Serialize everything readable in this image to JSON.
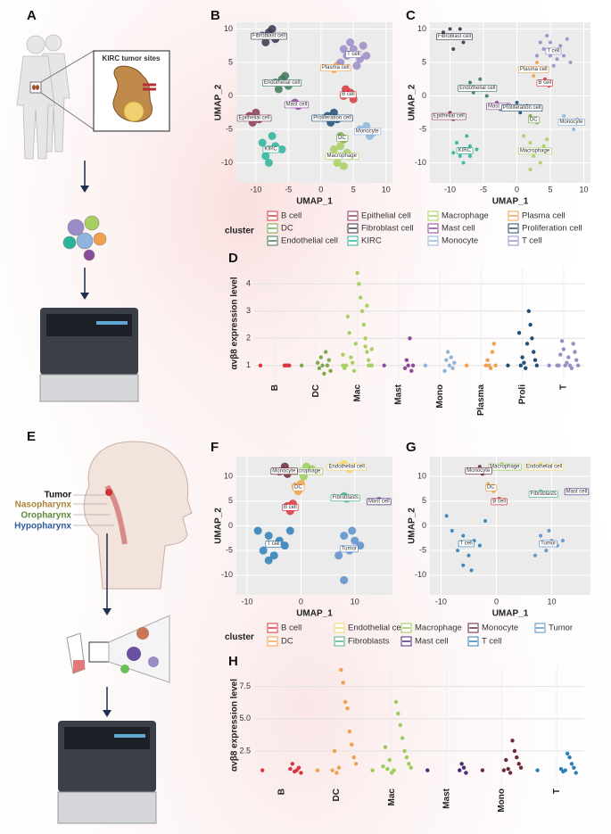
{
  "panel_labels": [
    "A",
    "B",
    "C",
    "D",
    "E",
    "F",
    "G",
    "H"
  ],
  "kidney": {
    "title": "KIRC tumor sites"
  },
  "head_neck": {
    "labels": [
      "Tumor",
      "Nasopharynx",
      "Oropharynx",
      "Hypopharynx"
    ]
  },
  "chart_data": [
    {
      "type": "umap",
      "x_label": "UMAP_1",
      "y_label": "UMAP_2",
      "legend_title": "cluster",
      "xlim": [
        -13,
        11
      ],
      "xticks": [
        -10,
        -5,
        0,
        5,
        10
      ],
      "ylim": [
        -13,
        11
      ],
      "yticks": [
        -10,
        -5,
        0,
        5,
        10
      ],
      "series": [
        {
          "name": "B cell",
          "color": "#d9363e",
          "x": [
            3.5,
            4.5,
            5,
            3.8
          ],
          "y": [
            0,
            0.5,
            -0.5,
            1
          ]
        },
        {
          "name": "DC",
          "color": "#7fa84a",
          "x": [
            3,
            3.5
          ],
          "y": [
            -6,
            -6.5
          ]
        },
        {
          "name": "Endothelial cell",
          "color": "#3c7a5a",
          "x": [
            -7,
            -6,
            -5,
            -6.5,
            -5.5
          ],
          "y": [
            2,
            2.5,
            1.5,
            1,
            3
          ]
        },
        {
          "name": "Epithelial cell",
          "color": "#8a3a5c",
          "x": [
            -11,
            -10,
            -9.5,
            -10.5
          ],
          "y": [
            -3,
            -2.5,
            -3.5,
            -4
          ]
        },
        {
          "name": "Fibroblast cell",
          "color": "#3b3550",
          "x": [
            -9,
            -8,
            -7,
            -8.5,
            -7.5
          ],
          "y": [
            9,
            9.5,
            8.5,
            8,
            10
          ]
        },
        {
          "name": "KIRC",
          "color": "#2bb39a",
          "x": [
            -9,
            -8,
            -7,
            -8.5,
            -7.5,
            -6,
            -8
          ],
          "y": [
            -7,
            -8,
            -7.5,
            -9,
            -6,
            -8,
            -10
          ]
        },
        {
          "name": "Macrophage",
          "color": "#a8d060",
          "x": [
            2,
            3,
            4,
            2.5,
            3.5,
            4.5,
            3
          ],
          "y": [
            -8,
            -9,
            -8.5,
            -10,
            -10.5,
            -9,
            -7.5
          ]
        },
        {
          "name": "Mast cell",
          "color": "#8c4a9a",
          "x": [
            -4,
            -3.5
          ],
          "y": [
            -1,
            -1.5
          ]
        },
        {
          "name": "Monocyte",
          "color": "#8fb5dc",
          "x": [
            6,
            7,
            8,
            7.5
          ],
          "y": [
            -5,
            -4.5,
            -5.5,
            -6
          ]
        },
        {
          "name": "Plasma cell",
          "color": "#f0a04a",
          "x": [
            2,
            2.5
          ],
          "y": [
            4,
            4.5
          ]
        },
        {
          "name": "Proliferation cell",
          "color": "#1f4e79",
          "x": [
            1,
            2,
            2.5,
            1.5
          ],
          "y": [
            -3,
            -2.5,
            -3.5,
            -4
          ]
        },
        {
          "name": "T cell",
          "color": "#9b8bc7",
          "x": [
            3,
            4,
            5,
            6,
            7,
            4.5,
            5.5,
            6.5,
            3.5
          ],
          "y": [
            5,
            6,
            7,
            5.5,
            6,
            8,
            4.5,
            7.5,
            7
          ]
        }
      ]
    },
    {
      "type": "umap",
      "x_label": "UMAP_1",
      "y_label": "UMAP_2",
      "xlim": [
        -13,
        11
      ],
      "xticks": [
        -10,
        -5,
        0,
        5,
        10
      ],
      "ylim": [
        -13,
        11
      ],
      "yticks": [
        -10,
        -5,
        0,
        5,
        10
      ],
      "series": [
        {
          "name": "B cell",
          "color": "#d9363e",
          "x": [
            3.5,
            4.2,
            4.8
          ],
          "y": [
            2,
            2.5,
            1.5
          ]
        },
        {
          "name": "DC",
          "color": "#7fa84a",
          "x": [
            2.5,
            3,
            2
          ],
          "y": [
            -3.5,
            -4,
            -3
          ]
        },
        {
          "name": "Endothelial cell",
          "color": "#3c7a5a",
          "x": [
            -7,
            -6,
            -5.5,
            -4.5,
            -6.5
          ],
          "y": [
            2,
            1,
            2.5,
            0,
            0.5
          ]
        },
        {
          "name": "Epithelial cell",
          "color": "#8a3a5c",
          "x": [
            -11,
            -10,
            -9.5
          ],
          "y": [
            -3,
            -2.5,
            -3.5
          ]
        },
        {
          "name": "Fibroblast cell",
          "color": "#3b3550",
          "x": [
            -10,
            -9,
            -8,
            -11,
            -9.5,
            -8.5
          ],
          "y": [
            10,
            9,
            8,
            9.5,
            7,
            10
          ]
        },
        {
          "name": "KIRC",
          "color": "#2bb39a",
          "x": [
            -9,
            -8,
            -7,
            -8.5,
            -7.5,
            -6,
            -8,
            -9.5,
            -7
          ],
          "y": [
            -7,
            -8,
            -7.5,
            -9,
            -6,
            -8,
            -10,
            -8.5,
            -9
          ]
        },
        {
          "name": "Macrophage",
          "color": "#a8d060",
          "x": [
            1,
            2,
            3,
            4,
            2.5,
            3.5,
            1.5,
            4.5,
            2
          ],
          "y": [
            -6,
            -7,
            -8,
            -7.5,
            -9,
            -10,
            -8.5,
            -6.5,
            -11
          ]
        },
        {
          "name": "Mast cell",
          "color": "#8c4a9a",
          "x": [
            -3,
            -2.5
          ],
          "y": [
            -1,
            -2
          ]
        },
        {
          "name": "Monocyte",
          "color": "#8fb5dc",
          "x": [
            7,
            8,
            9,
            8.5
          ],
          "y": [
            -3,
            -4,
            -3.5,
            -5
          ]
        },
        {
          "name": "Plasma cell",
          "color": "#f0a04a",
          "x": [
            2,
            2.5,
            3
          ],
          "y": [
            4,
            3,
            5
          ]
        },
        {
          "name": "Proliferation cell",
          "color": "#1f4e79",
          "x": [
            0,
            1,
            1.5,
            0.5
          ],
          "y": [
            -1,
            -2,
            -1.5,
            -2.5
          ]
        },
        {
          "name": "T cell",
          "color": "#9b8bc7",
          "x": [
            3,
            4,
            5,
            6,
            7,
            4.5,
            5.5,
            6.5,
            8,
            3.5,
            5,
            7.5
          ],
          "y": [
            6,
            7,
            8,
            5.5,
            6,
            9,
            4.5,
            7.5,
            5,
            8,
            6,
            8.5
          ]
        }
      ]
    },
    {
      "type": "strip",
      "y_label": "αvβ8 expression level",
      "categories": [
        "B",
        "DC",
        "Mac",
        "Mast",
        "Mono",
        "Plasma",
        "Proli",
        "T"
      ],
      "colors": [
        "#d9363e",
        "#7fa84a",
        "#a8d060",
        "#8c4a9a",
        "#8fb5dc",
        "#f0a04a",
        "#1f4e79",
        "#9b8bc7"
      ],
      "ylim": [
        0.5,
        4.6
      ],
      "yticks": [
        1,
        2,
        3,
        4
      ],
      "values": [
        [
          1,
          1,
          1,
          1,
          1
        ],
        [
          1,
          0.8,
          1.2,
          1,
          1.5,
          0.7,
          1,
          1.3,
          0.9,
          1.1
        ],
        [
          1,
          1,
          1,
          1.2,
          1.5,
          2,
          2.5,
          3,
          3.5,
          4,
          4.4,
          1.8,
          0.8,
          1.1,
          1.3,
          2.2,
          2.8,
          1,
          0.9,
          1.4,
          1.6,
          1,
          1,
          3.2,
          1.7
        ],
        [
          1,
          1,
          0.8,
          2,
          1,
          1.2,
          0.9
        ],
        [
          1,
          1.1,
          0.9,
          1.3,
          1,
          1.5,
          1.2,
          0.8
        ],
        [
          1,
          1,
          1.8,
          1.5,
          0.9,
          1,
          1.2,
          1
        ],
        [
          1,
          1,
          1.2,
          1.5,
          2,
          2.5,
          3,
          1.8,
          0.9,
          1.1,
          1.3,
          1,
          2.2
        ],
        [
          1,
          1,
          1.2,
          1.5,
          1.8,
          0.9,
          1,
          1.3,
          1.1,
          1,
          1.6,
          1.9,
          1.4,
          1,
          1
        ]
      ]
    },
    {
      "type": "umap",
      "x_label": "UMAP_1",
      "y_label": "UMAP_2",
      "legend_title": "cluster",
      "xlim": [
        -12,
        17
      ],
      "xticks": [
        -10,
        0,
        10
      ],
      "ylim": [
        -14,
        14
      ],
      "yticks": [
        -10,
        -5,
        0,
        5,
        10
      ],
      "series": [
        {
          "name": "B cell",
          "color": "#d9363e",
          "x": [
            -2.5,
            -1.5,
            -2
          ],
          "y": [
            4,
            4.5,
            3
          ]
        },
        {
          "name": "DC",
          "color": "#f0a04a",
          "x": [
            -1,
            -0.5,
            0
          ],
          "y": [
            8,
            7,
            8.5
          ]
        },
        {
          "name": "Endothelial cell",
          "color": "#f5d76e",
          "x": [
            7,
            8,
            9,
            10
          ],
          "y": [
            12,
            12.5,
            11.5,
            12
          ]
        },
        {
          "name": "Fibroblasts",
          "color": "#4db38a",
          "x": [
            8,
            8.5
          ],
          "y": [
            6,
            5.5
          ]
        },
        {
          "name": "Macrophage",
          "color": "#9ccc5a",
          "x": [
            0,
            1,
            2,
            0.5
          ],
          "y": [
            11,
            12,
            11.5,
            10
          ]
        },
        {
          "name": "Mast cell",
          "color": "#4b2a7a",
          "x": [
            14.5
          ],
          "y": [
            5
          ]
        },
        {
          "name": "Monocyte",
          "color": "#6b2a3a",
          "x": [
            -4,
            -3,
            -2.5
          ],
          "y": [
            11,
            12,
            10.5
          ]
        },
        {
          "name": "T cell",
          "color": "#2c7fb8",
          "x": [
            -8,
            -6,
            -4,
            -7,
            -5,
            -3,
            -6,
            -2
          ],
          "y": [
            -1,
            -2,
            -3,
            -5,
            -6,
            -4,
            -7,
            -1
          ]
        },
        {
          "name": "Tumor",
          "color": "#5b8fc9",
          "x": [
            8,
            10,
            9,
            11,
            7,
            9.5,
            8
          ],
          "y": [
            -2,
            -3,
            -5,
            -4,
            -6,
            -1,
            -11
          ]
        }
      ]
    },
    {
      "type": "umap",
      "x_label": "UMAP_1",
      "y_label": "UMAP_2",
      "xlim": [
        -12,
        17
      ],
      "xticks": [
        -10,
        0,
        10
      ],
      "ylim": [
        -14,
        14
      ],
      "yticks": [
        -10,
        -5,
        0,
        5,
        10
      ],
      "series": [
        {
          "name": "B cell",
          "color": "#d9363e",
          "x": [
            0,
            1,
            0.5
          ],
          "y": [
            5,
            4.5,
            5.5
          ]
        },
        {
          "name": "DC",
          "color": "#f0a04a",
          "x": [
            -1,
            -0.5,
            -1.5
          ],
          "y": [
            8,
            7,
            8.5
          ]
        },
        {
          "name": "Endothelial cell",
          "color": "#f5d76e",
          "x": [
            7,
            8,
            9,
            10.5
          ],
          "y": [
            12,
            12.5,
            11.5,
            12
          ]
        },
        {
          "name": "Fibroblasts",
          "color": "#4db38a",
          "x": [
            8,
            8.5,
            9
          ],
          "y": [
            7,
            6,
            6.5
          ]
        },
        {
          "name": "Macrophage",
          "color": "#9ccc5a",
          "x": [
            0,
            1,
            2,
            3
          ],
          "y": [
            12,
            12.5,
            11.5,
            12
          ]
        },
        {
          "name": "Mast cell",
          "color": "#4b2a7a",
          "x": [
            14.5
          ],
          "y": [
            7
          ]
        },
        {
          "name": "Monocyte",
          "color": "#6b2a3a",
          "x": [
            -4,
            -3,
            -2.5,
            -3.5
          ],
          "y": [
            11,
            12,
            10.5,
            11.5
          ]
        },
        {
          "name": "T cell",
          "color": "#2c7fb8",
          "x": [
            -8,
            -6,
            -4,
            -7,
            -5,
            -3,
            -6,
            -2,
            -9,
            -4.5
          ],
          "y": [
            -1,
            -2,
            -3,
            -5,
            -6,
            -4,
            -8,
            1,
            2,
            -9
          ]
        },
        {
          "name": "Tumor",
          "color": "#5b8fc9",
          "x": [
            8,
            10,
            9,
            11,
            7,
            9.5,
            12,
            8.5
          ],
          "y": [
            -2,
            -3,
            -5,
            -4,
            -6,
            -1,
            -3,
            -4
          ]
        }
      ]
    },
    {
      "type": "strip",
      "y_label": "αvβ8 expression level",
      "categories": [
        "B",
        "DC",
        "Mac",
        "Mast",
        "Mono",
        "T"
      ],
      "colors": [
        "#d9363e",
        "#f0a04a",
        "#9ccc5a",
        "#4b2a7a",
        "#6b2a3a",
        "#2c7fb8"
      ],
      "ylim": [
        0,
        9
      ],
      "yticks": [
        2.5,
        {
          "value": 5,
          "label": "5.0"
        },
        7.5
      ],
      "values": [
        [
          1,
          0.8,
          1.2,
          1,
          0.9,
          1.5,
          1.1
        ],
        [
          1,
          1.5,
          2,
          3,
          4,
          5.8,
          6.3,
          7.8,
          8.8,
          1.2,
          0.8,
          2.5,
          1
        ],
        [
          1,
          1.2,
          1.5,
          2,
          2.5,
          3.5,
          4.5,
          5.4,
          6.3,
          1,
          0.8,
          1.8,
          1.1,
          2.8,
          1.3
        ],
        [
          1,
          0.8,
          1.2,
          1.5,
          1
        ],
        [
          1,
          1.2,
          1.5,
          2,
          2.5,
          3.3,
          0.8,
          1.1,
          1.8,
          1
        ],
        [
          1,
          0.8,
          1.2,
          1.5,
          2,
          2.3,
          1,
          0.9,
          1.1
        ]
      ]
    }
  ]
}
